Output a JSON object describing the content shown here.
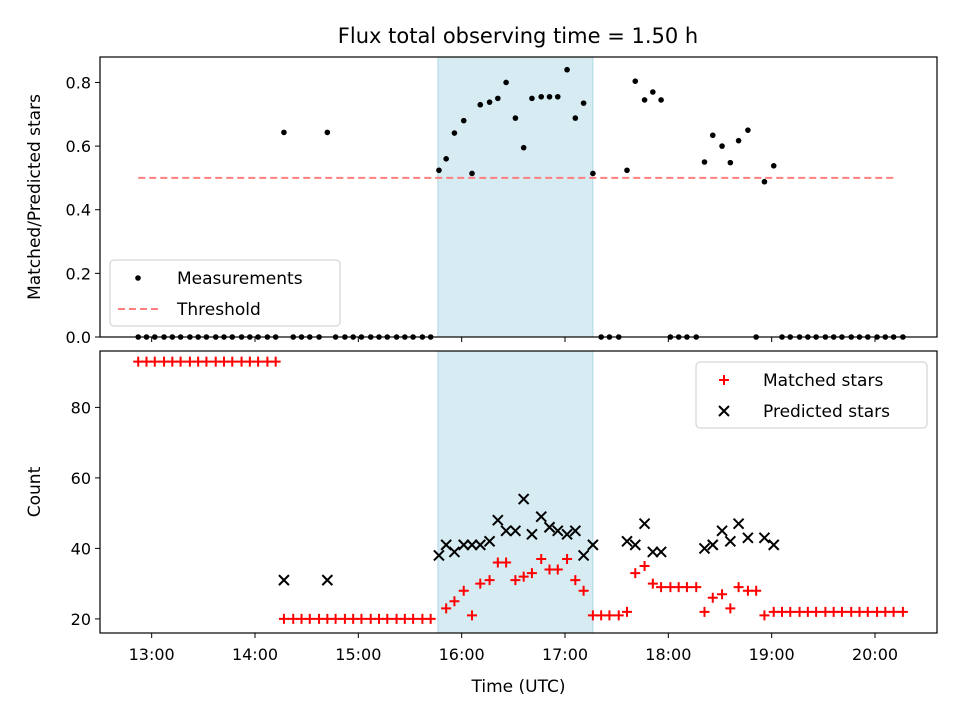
{
  "title": "Flux total observing time = 1.50 h",
  "chart_data": [
    {
      "type": "scatter",
      "ylabel": "Matched/Predicted stars",
      "xlim": [
        12.5,
        20.6
      ],
      "ylim": [
        0,
        0.88
      ],
      "yticks": [
        "0.0",
        "0.2",
        "0.4",
        "0.6",
        "0.8"
      ],
      "grid": false,
      "legend": "lower-left",
      "highlight_span": [
        15.77,
        17.27
      ],
      "highlight_color": "#add8e6",
      "series": [
        {
          "name": "Measurements",
          "color": "#000000",
          "marker": "dot",
          "points": [
            [
              12.87,
              0
            ],
            [
              12.95,
              0
            ],
            [
              13.03,
              0
            ],
            [
              13.12,
              0
            ],
            [
              13.2,
              0
            ],
            [
              13.28,
              0
            ],
            [
              13.37,
              0
            ],
            [
              13.45,
              0
            ],
            [
              13.53,
              0
            ],
            [
              13.62,
              0
            ],
            [
              13.7,
              0
            ],
            [
              13.78,
              0
            ],
            [
              13.87,
              0
            ],
            [
              13.95,
              0
            ],
            [
              14.03,
              0
            ],
            [
              14.12,
              0
            ],
            [
              14.2,
              0
            ],
            [
              14.28,
              0.643
            ],
            [
              14.37,
              0
            ],
            [
              14.45,
              0
            ],
            [
              14.53,
              0
            ],
            [
              14.62,
              0
            ],
            [
              14.7,
              0.643
            ],
            [
              14.78,
              0
            ],
            [
              14.87,
              0
            ],
            [
              14.95,
              0
            ],
            [
              15.03,
              0
            ],
            [
              15.12,
              0
            ],
            [
              15.2,
              0
            ],
            [
              15.28,
              0
            ],
            [
              15.37,
              0
            ],
            [
              15.45,
              0
            ],
            [
              15.53,
              0
            ],
            [
              15.62,
              0
            ],
            [
              15.7,
              0
            ],
            [
              15.78,
              0.524
            ],
            [
              15.85,
              0.56
            ],
            [
              15.93,
              0.641
            ],
            [
              16.02,
              0.68
            ],
            [
              16.1,
              0.514
            ],
            [
              16.18,
              0.73
            ],
            [
              16.27,
              0.738
            ],
            [
              16.35,
              0.75
            ],
            [
              16.43,
              0.8
            ],
            [
              16.52,
              0.688
            ],
            [
              16.6,
              0.595
            ],
            [
              16.68,
              0.75
            ],
            [
              16.77,
              0.755
            ],
            [
              16.85,
              0.755
            ],
            [
              16.93,
              0.755
            ],
            [
              17.02,
              0.84
            ],
            [
              17.1,
              0.688
            ],
            [
              17.18,
              0.735
            ],
            [
              17.27,
              0.514
            ],
            [
              17.35,
              0
            ],
            [
              17.43,
              0
            ],
            [
              17.52,
              0
            ],
            [
              17.6,
              0.524
            ],
            [
              17.68,
              0.804
            ],
            [
              17.77,
              0.745
            ],
            [
              17.85,
              0.77
            ],
            [
              17.93,
              0.745
            ],
            [
              18.02,
              0
            ],
            [
              18.1,
              0
            ],
            [
              18.18,
              0
            ],
            [
              18.27,
              0
            ],
            [
              18.35,
              0.55
            ],
            [
              18.43,
              0.634
            ],
            [
              18.52,
              0.6
            ],
            [
              18.6,
              0.548
            ],
            [
              18.68,
              0.617
            ],
            [
              18.77,
              0.65
            ],
            [
              18.85,
              0
            ],
            [
              18.93,
              0.488
            ],
            [
              19.02,
              0.538
            ],
            [
              19.1,
              0
            ],
            [
              19.18,
              0
            ],
            [
              19.27,
              0
            ],
            [
              19.35,
              0
            ],
            [
              19.43,
              0
            ],
            [
              19.52,
              0
            ],
            [
              19.6,
              0
            ],
            [
              19.68,
              0
            ],
            [
              19.77,
              0
            ],
            [
              19.85,
              0
            ],
            [
              19.93,
              0
            ],
            [
              20.02,
              0
            ],
            [
              20.1,
              0
            ],
            [
              20.18,
              0
            ],
            [
              20.27,
              0
            ]
          ]
        },
        {
          "name": "Threshold",
          "color": "#ff7f7f",
          "style": "dashed",
          "x": [
            12.87,
            20.2
          ],
          "y": [
            0.5,
            0.5
          ]
        }
      ]
    },
    {
      "type": "scatter",
      "xlabel": "Time (UTC)",
      "ylabel": "Count",
      "xlim": [
        12.5,
        20.6
      ],
      "ylim": [
        16,
        96
      ],
      "xticks": [
        "13:00",
        "14:00",
        "15:00",
        "16:00",
        "17:00",
        "18:00",
        "19:00",
        "20:00"
      ],
      "yticks": [
        "20",
        "40",
        "60",
        "80"
      ],
      "grid": false,
      "legend": "upper-right",
      "highlight_span": [
        15.77,
        17.27
      ],
      "highlight_color": "#add8e6",
      "series": [
        {
          "name": "Matched stars",
          "color": "#ff0000",
          "marker": "plus",
          "points": [
            [
              12.87,
              93
            ],
            [
              12.95,
              93
            ],
            [
              13.03,
              93
            ],
            [
              13.12,
              93
            ],
            [
              13.2,
              93
            ],
            [
              13.28,
              93
            ],
            [
              13.37,
              93
            ],
            [
              13.45,
              93
            ],
            [
              13.53,
              93
            ],
            [
              13.62,
              93
            ],
            [
              13.7,
              93
            ],
            [
              13.78,
              93
            ],
            [
              13.87,
              93
            ],
            [
              13.95,
              93
            ],
            [
              14.03,
              93
            ],
            [
              14.12,
              93
            ],
            [
              14.2,
              93
            ],
            [
              14.28,
              20
            ],
            [
              14.37,
              20
            ],
            [
              14.45,
              20
            ],
            [
              14.53,
              20
            ],
            [
              14.62,
              20
            ],
            [
              14.7,
              20
            ],
            [
              14.78,
              20
            ],
            [
              14.87,
              20
            ],
            [
              14.95,
              20
            ],
            [
              15.03,
              20
            ],
            [
              15.12,
              20
            ],
            [
              15.2,
              20
            ],
            [
              15.28,
              20
            ],
            [
              15.37,
              20
            ],
            [
              15.45,
              20
            ],
            [
              15.53,
              20
            ],
            [
              15.62,
              20
            ],
            [
              15.7,
              20
            ],
            [
              15.85,
              23
            ],
            [
              15.93,
              25
            ],
            [
              16.02,
              28
            ],
            [
              16.1,
              21
            ],
            [
              16.18,
              30
            ],
            [
              16.27,
              31
            ],
            [
              16.35,
              36
            ],
            [
              16.43,
              36
            ],
            [
              16.52,
              31
            ],
            [
              16.6,
              32
            ],
            [
              16.68,
              33
            ],
            [
              16.77,
              37
            ],
            [
              16.85,
              34
            ],
            [
              16.93,
              34
            ],
            [
              17.02,
              37
            ],
            [
              17.1,
              31
            ],
            [
              17.18,
              28
            ],
            [
              17.27,
              21
            ],
            [
              17.35,
              21
            ],
            [
              17.43,
              21
            ],
            [
              17.52,
              21
            ],
            [
              17.6,
              22
            ],
            [
              17.68,
              33
            ],
            [
              17.77,
              35
            ],
            [
              17.85,
              30
            ],
            [
              17.93,
              29
            ],
            [
              18.02,
              29
            ],
            [
              18.1,
              29
            ],
            [
              18.18,
              29
            ],
            [
              18.27,
              29
            ],
            [
              18.35,
              22
            ],
            [
              18.43,
              26
            ],
            [
              18.52,
              27
            ],
            [
              18.6,
              23
            ],
            [
              18.68,
              29
            ],
            [
              18.77,
              28
            ],
            [
              18.85,
              28
            ],
            [
              18.93,
              21
            ],
            [
              19.02,
              22
            ],
            [
              19.1,
              22
            ],
            [
              19.18,
              22
            ],
            [
              19.27,
              22
            ],
            [
              19.35,
              22
            ],
            [
              19.43,
              22
            ],
            [
              19.52,
              22
            ],
            [
              19.6,
              22
            ],
            [
              19.68,
              22
            ],
            [
              19.77,
              22
            ],
            [
              19.85,
              22
            ],
            [
              19.93,
              22
            ],
            [
              20.02,
              22
            ],
            [
              20.1,
              22
            ],
            [
              20.18,
              22
            ],
            [
              20.27,
              22
            ]
          ]
        },
        {
          "name": "Predicted stars",
          "color": "#000000",
          "marker": "x",
          "points": [
            [
              14.28,
              31
            ],
            [
              14.7,
              31
            ],
            [
              15.78,
              38
            ],
            [
              15.85,
              41
            ],
            [
              15.93,
              39
            ],
            [
              16.02,
              41
            ],
            [
              16.1,
              41
            ],
            [
              16.18,
              41
            ],
            [
              16.27,
              42
            ],
            [
              16.35,
              48
            ],
            [
              16.43,
              45
            ],
            [
              16.52,
              45
            ],
            [
              16.6,
              54
            ],
            [
              16.68,
              44
            ],
            [
              16.77,
              49
            ],
            [
              16.85,
              46
            ],
            [
              16.93,
              45
            ],
            [
              17.02,
              44
            ],
            [
              17.1,
              45
            ],
            [
              17.18,
              38
            ],
            [
              17.27,
              41
            ],
            [
              17.6,
              42
            ],
            [
              17.68,
              41
            ],
            [
              17.77,
              47
            ],
            [
              17.85,
              39
            ],
            [
              17.93,
              39
            ],
            [
              18.35,
              40
            ],
            [
              18.43,
              41
            ],
            [
              18.52,
              45
            ],
            [
              18.6,
              42
            ],
            [
              18.68,
              47
            ],
            [
              18.77,
              43
            ],
            [
              18.93,
              43
            ],
            [
              19.02,
              41
            ]
          ]
        }
      ]
    }
  ]
}
